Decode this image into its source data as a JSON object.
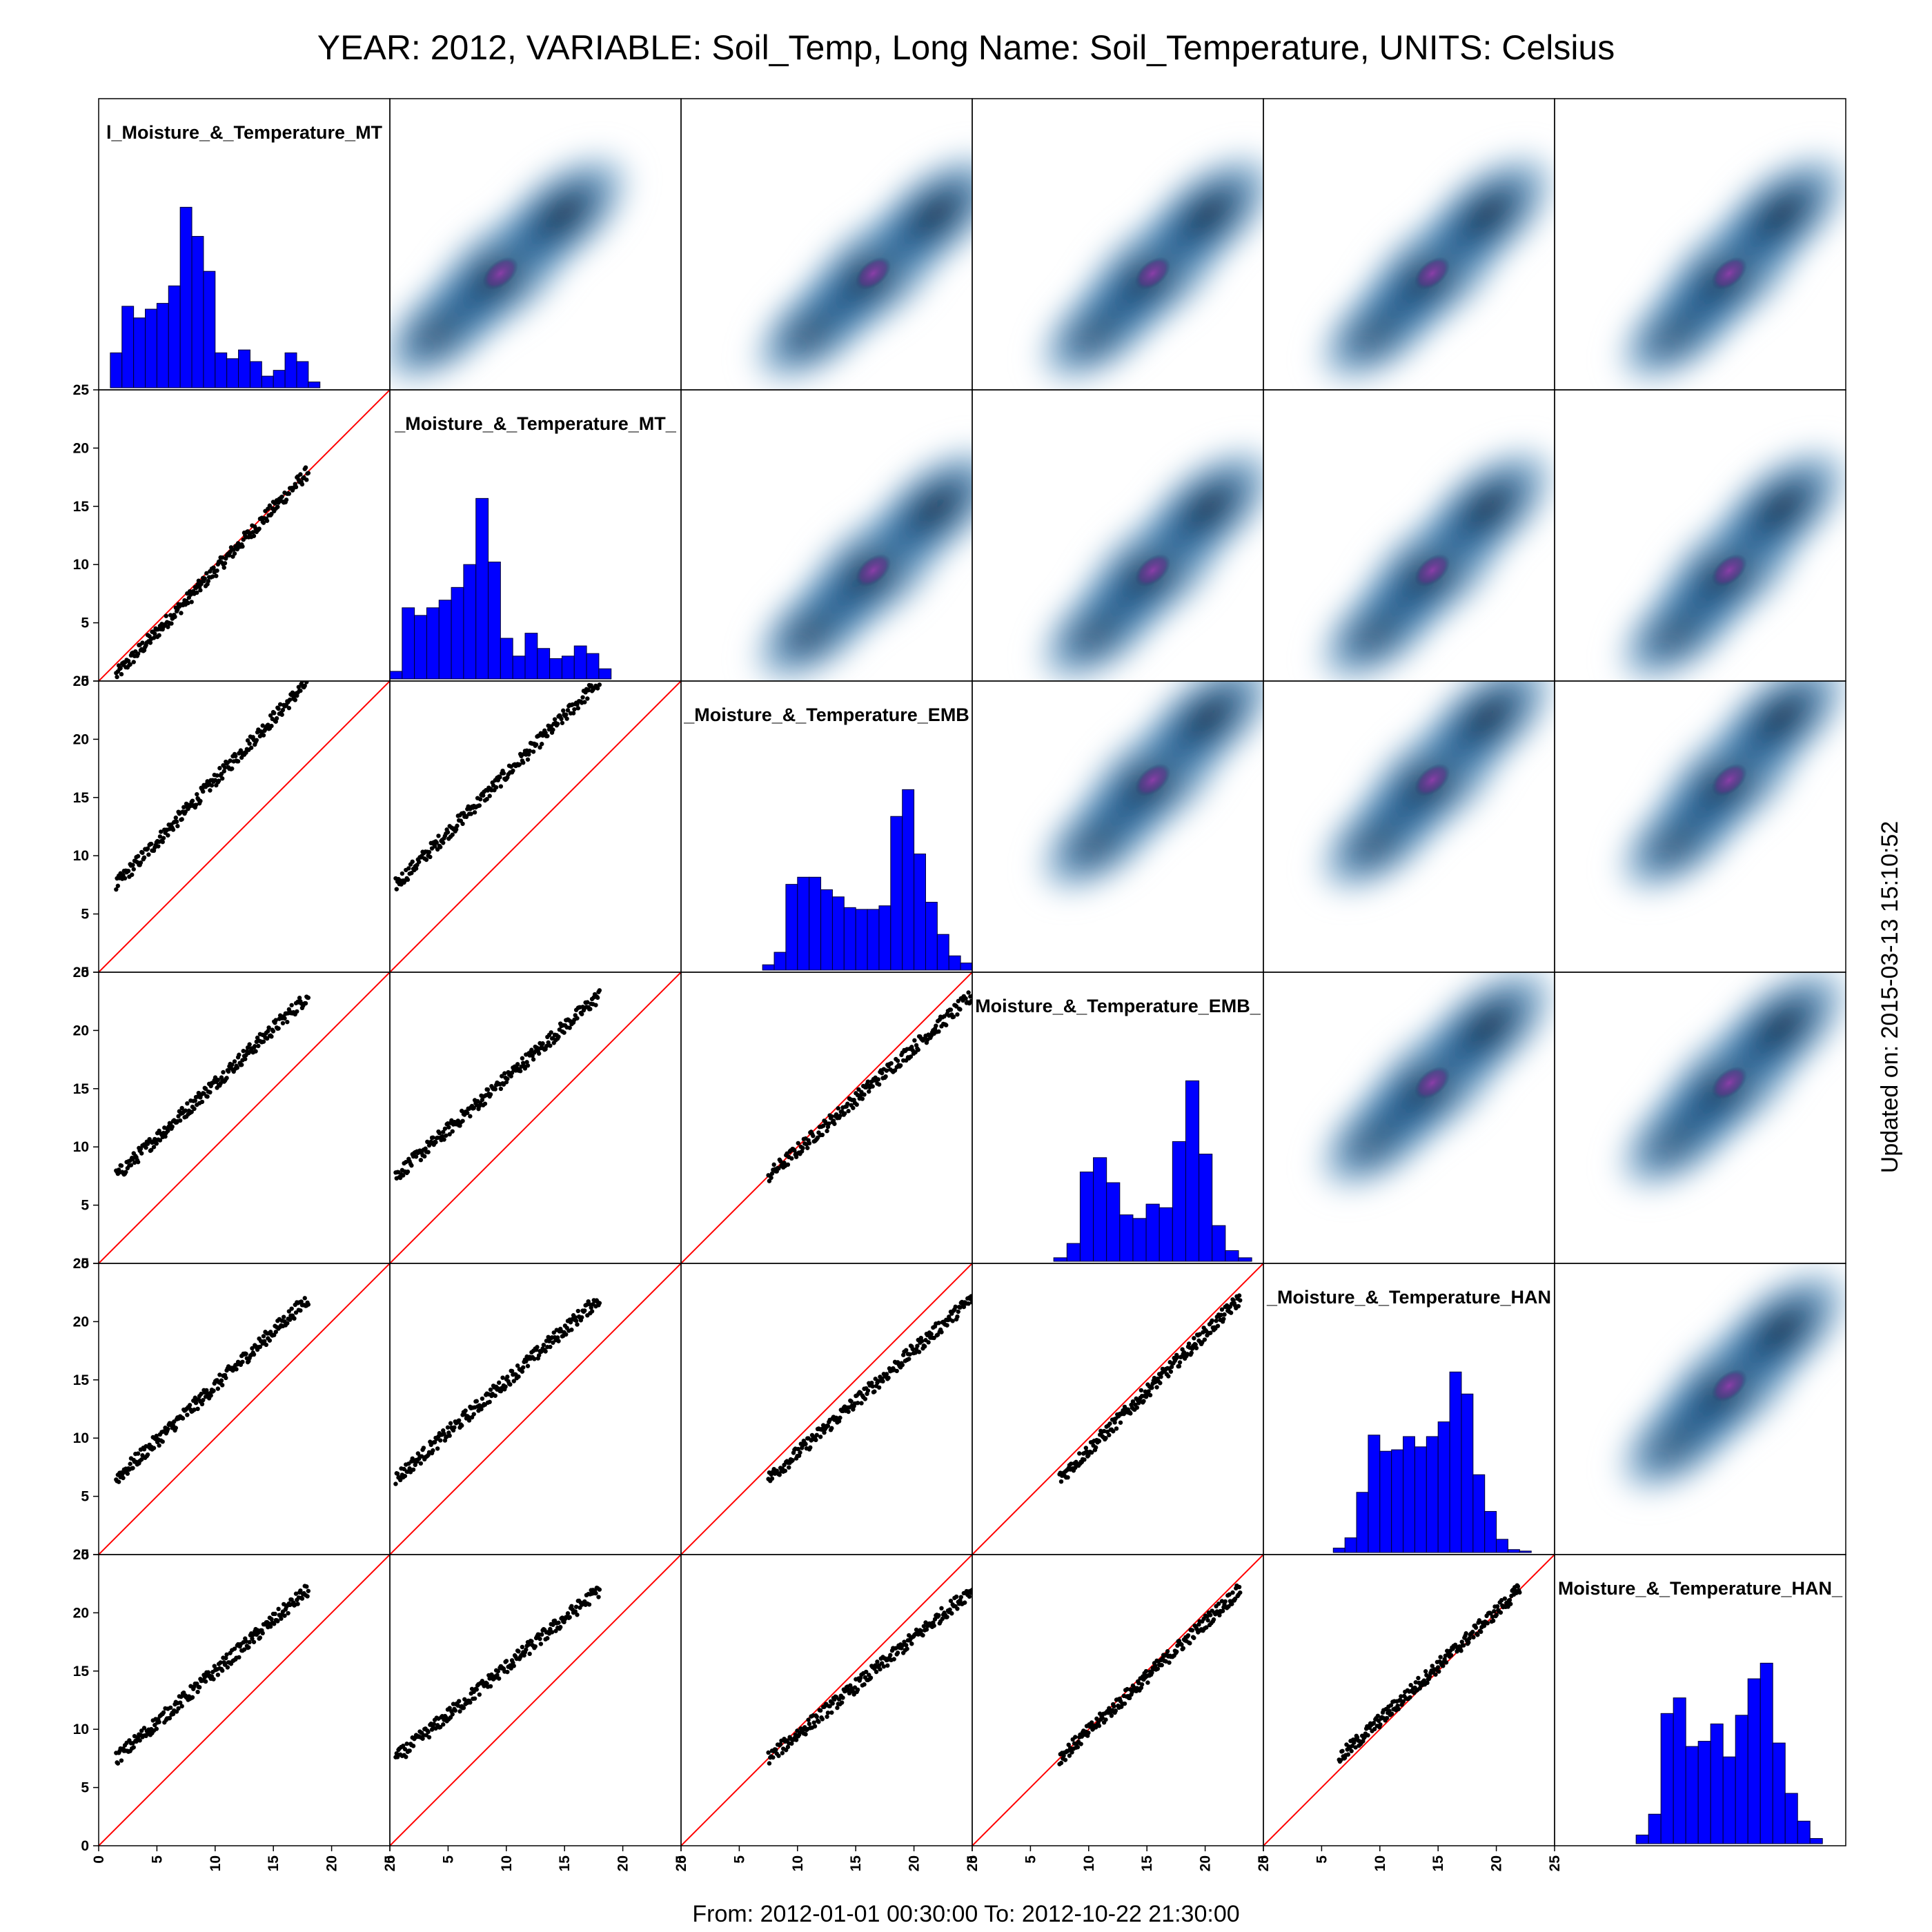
{
  "header": {
    "title": "YEAR: 2012, VARIABLE: Soil_Temp, Long Name: Soil_Temperature, UNITS: Celsius"
  },
  "footer": {
    "range": "From: 2012-01-01 00:30:00 To: 2012-10-22 21:30:00"
  },
  "side": {
    "updated": "Updated on: 2015-03-13 15:10:52"
  },
  "colors": {
    "histogram": "#0000ff",
    "identity_line": "#ff0000",
    "points": "#000000",
    "density_low": "#ffffff",
    "density_mid": "#2a6ea8",
    "density_high": "#0b2540",
    "density_peak": "#7b3f9c"
  },
  "chart_data": {
    "type": "scatter",
    "layout": "scatterplot-matrix",
    "panels_per_side": 6,
    "upper_panels": "2d-density",
    "lower_panels": "scatter with y=x reference line",
    "diagonal_panels": "histogram",
    "axis_range": [
      0,
      25
    ],
    "axis_ticks": [
      0,
      5,
      10,
      15,
      20,
      25
    ],
    "axis_tick_labels": [
      "0",
      "5",
      "10",
      "15",
      "20",
      "25"
    ],
    "variables": [
      {
        "label": "l_Moisture_&_Temperature_MT",
        "hist_range": [
          1.0,
          19.0
        ],
        "hist_counts": [
          12,
          28,
          24,
          27,
          29,
          35,
          62,
          52,
          40,
          12,
          10,
          13,
          9,
          4,
          6,
          12,
          9,
          2
        ]
      },
      {
        "label": "_Moisture_&_Temperature_MT_",
        "hist_range": [
          0.0,
          19.0
        ],
        "hist_counts": [
          3,
          28,
          25,
          28,
          31,
          36,
          45,
          71,
          46,
          16,
          9,
          18,
          12,
          8,
          9,
          13,
          10,
          4
        ]
      },
      {
        "label": "_Moisture_&_Temperature_EMB",
        "hist_range": [
          7.0,
          26.0
        ],
        "hist_counts": [
          3,
          10,
          48,
          52,
          52,
          45,
          41,
          35,
          34,
          34,
          36,
          86,
          101,
          65,
          38,
          20,
          8,
          4,
          2
        ]
      },
      {
        "label": "Moisture_&_Temperature_EMB_",
        "hist_range": [
          7.0,
          24.0
        ],
        "hist_counts": [
          2,
          10,
          50,
          58,
          44,
          26,
          24,
          32,
          30,
          67,
          101,
          60,
          20,
          6,
          2
        ]
      },
      {
        "label": "_Moisture_&_Temperature_HAN",
        "hist_range": [
          6.0,
          23.0
        ],
        "hist_counts": [
          3,
          10,
          41,
          80,
          69,
          70,
          79,
          72,
          79,
          89,
          123,
          108,
          53,
          28,
          9,
          2,
          1
        ]
      },
      {
        "label": "Moisture_&_Temperature_HAN_",
        "hist_range": [
          7.0,
          23.0
        ],
        "hist_counts": [
          5,
          17,
          75,
          84,
          56,
          59,
          69,
          50,
          74,
          95,
          104,
          58,
          29,
          13,
          3
        ]
      }
    ]
  }
}
